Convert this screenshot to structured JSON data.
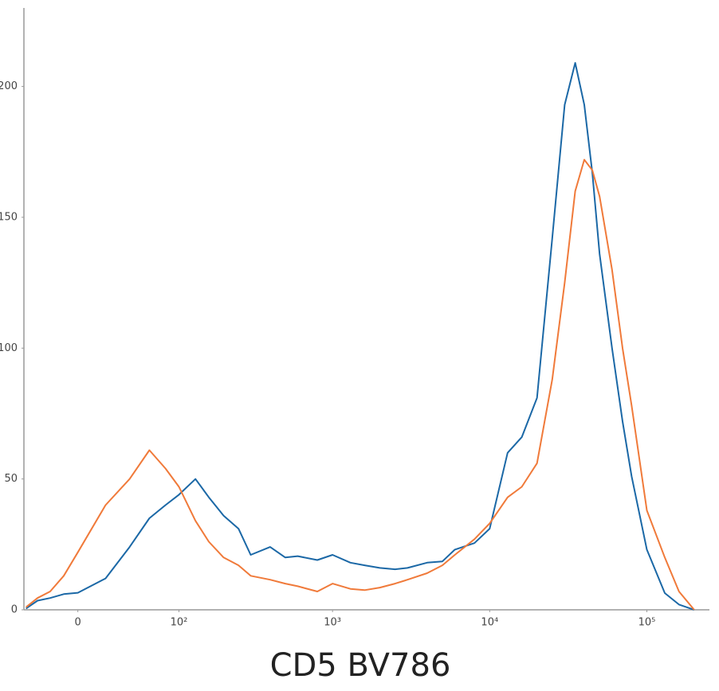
{
  "chart_data": {
    "type": "line",
    "title": "CD5 BV786",
    "xscale": "biexponential",
    "x": [
      -40,
      -30,
      -20,
      -10,
      0,
      20,
      40,
      60,
      80,
      100,
      130,
      160,
      200,
      250,
      300,
      400,
      500,
      600,
      800,
      1000,
      1300,
      1600,
      2000,
      2500,
      3000,
      4000,
      5000,
      6000,
      8000,
      10000,
      13000,
      16000,
      20000,
      25000,
      30000,
      35000,
      40000,
      45000,
      50000,
      60000,
      70000,
      80000,
      100000,
      130000,
      160000,
      200000
    ],
    "series": [
      {
        "color": "#1b68a6",
        "values": [
          0.5,
          3.5,
          4.5,
          6,
          6.5,
          12,
          24,
          35,
          40,
          44,
          50,
          43,
          36,
          31,
          21,
          24,
          20,
          20.5,
          19,
          21,
          18,
          17,
          16,
          15.5,
          16,
          18,
          18.5,
          23,
          25.5,
          31,
          60,
          66,
          81,
          142,
          193,
          209,
          193,
          167,
          136,
          100,
          72,
          51,
          23,
          6.4,
          2,
          0
        ]
      },
      {
        "color": "#f07a3a",
        "values": [
          1,
          4.5,
          7,
          13,
          22,
          40,
          50,
          61,
          54,
          47,
          34,
          26,
          20,
          17,
          13,
          11.5,
          10,
          9,
          7,
          10,
          8,
          7.5,
          8.5,
          10,
          11.5,
          14,
          17,
          21,
          27,
          33,
          43,
          47,
          56,
          88,
          125,
          160,
          172,
          168,
          158,
          130,
          100,
          78,
          38,
          20,
          7,
          0
        ]
      }
    ],
    "xlim": [
      -42,
      250000
    ],
    "xticks": [
      0,
      {
        "value": 100,
        "label": "10²"
      },
      {
        "value": 1000,
        "label": "10³"
      },
      {
        "value": 10000,
        "label": "10⁴"
      },
      {
        "value": 100000,
        "label": "10⁵"
      }
    ],
    "ylim": [
      0,
      230
    ],
    "yticks": [
      0,
      50,
      100,
      150,
      200
    ]
  }
}
